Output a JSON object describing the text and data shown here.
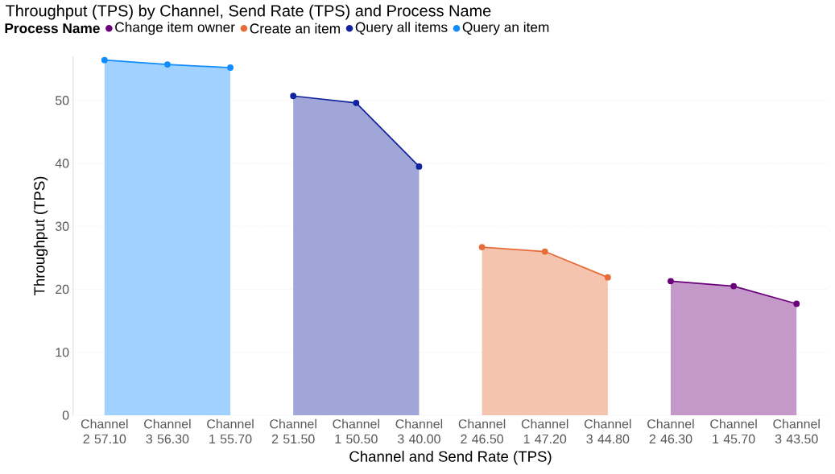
{
  "chart_data": {
    "type": "area",
    "title": "Throughput (TPS) by Channel, Send Rate (TPS) and Process Name",
    "xlabel": "Channel and Send Rate (TPS)",
    "ylabel": "Throughput (TPS)",
    "legend_title": "Process Name",
    "categories": [
      "Channel 2 57.10",
      "Channel 3 56.30",
      "Channel 1 55.70",
      "Channel 2 51.50",
      "Channel 1 50.50",
      "Channel 3 40.00",
      "Channel 2 46.50",
      "Channel 1 47.20",
      "Channel 3 44.80",
      "Channel 2 46.30",
      "Channel 1 45.70",
      "Channel 3 43.50"
    ],
    "series": [
      {
        "name": "Change item owner",
        "color": "#6b007b",
        "values": [
          null,
          null,
          null,
          null,
          null,
          null,
          null,
          null,
          null,
          21.3,
          20.5,
          17.7
        ]
      },
      {
        "name": "Create an item",
        "color": "#e66c37",
        "values": [
          null,
          null,
          null,
          null,
          null,
          null,
          26.7,
          26.0,
          21.9,
          null,
          null,
          null
        ]
      },
      {
        "name": "Query all items",
        "color": "#12239e",
        "values": [
          null,
          null,
          null,
          50.7,
          49.6,
          39.5,
          null,
          null,
          null,
          null,
          null,
          null
        ]
      },
      {
        "name": "Query an item",
        "color": "#118dff",
        "values": [
          56.4,
          55.7,
          55.2,
          null,
          null,
          null,
          null,
          null,
          null,
          null,
          null,
          null
        ]
      }
    ],
    "ylim": [
      0,
      57
    ],
    "yticks": [
      0,
      10,
      20,
      30,
      40,
      50
    ],
    "grid": "y",
    "legend": "top left",
    "marker": "circle"
  }
}
